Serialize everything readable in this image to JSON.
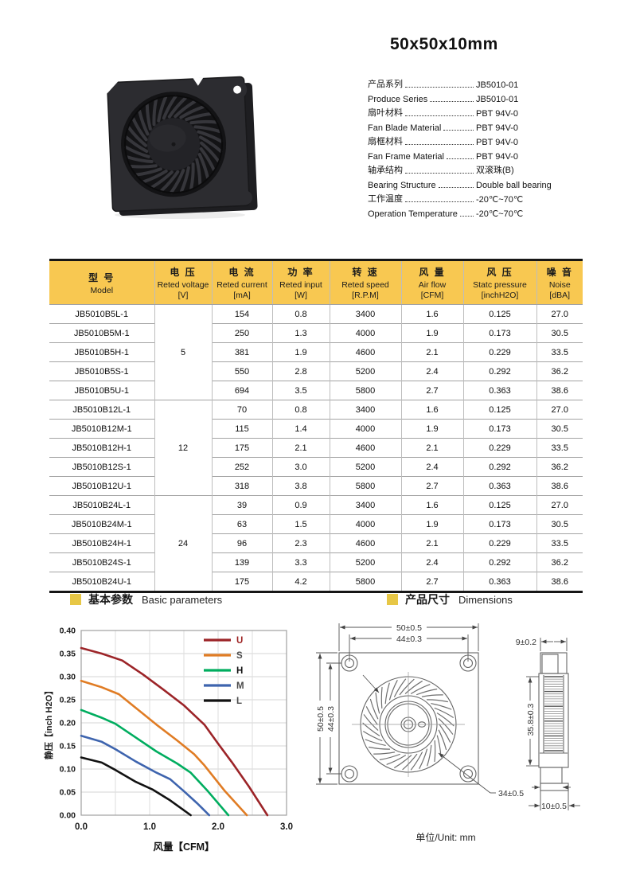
{
  "page": {
    "title": "50x50x10mm"
  },
  "specs": [
    {
      "label": "产品系列",
      "value": "JB5010-01"
    },
    {
      "label": "Produce Series",
      "value": "JB5010-01"
    },
    {
      "label": "扇叶材料",
      "value": "PBT  94V-0"
    },
    {
      "label": "Fan Blade Material",
      "value": "PBT  94V-0"
    },
    {
      "label": "扇框材料",
      "value": "PBT  94V-0"
    },
    {
      "label": "Fan Frame Material",
      "value": "PBT  94V-0"
    },
    {
      "label": "轴承结构",
      "value": "双滚珠(B)"
    },
    {
      "label": "Bearing Structure",
      "value": "Double ball bearing"
    },
    {
      "label": "工作温度",
      "value": "-20℃~70℃"
    },
    {
      "label": "Operation Temperature",
      "value": "-20℃~70℃"
    }
  ],
  "table": {
    "headers": [
      {
        "cn": "型 号",
        "en": "Model",
        "unit": ""
      },
      {
        "cn": "电 压",
        "en": "Reted voltage",
        "unit": "[V]"
      },
      {
        "cn": "电 流",
        "en": "Reted current",
        "unit": "[mA]"
      },
      {
        "cn": "功 率",
        "en": "Reted input",
        "unit": "[W]"
      },
      {
        "cn": "转 速",
        "en": "Reted speed",
        "unit": "[R.P.M]"
      },
      {
        "cn": "风 量",
        "en": "Air flow",
        "unit": "[CFM]"
      },
      {
        "cn": "风 压",
        "en": "Statc pressure",
        "unit": "[inchH2O]"
      },
      {
        "cn": "噪 音",
        "en": "Noise",
        "unit": "[dBA]"
      }
    ],
    "groups": [
      {
        "voltage": "5",
        "rows": [
          [
            "JB5010B5L-1",
            "154",
            "0.8",
            "3400",
            "1.6",
            "0.125",
            "27.0"
          ],
          [
            "JB5010B5M-1",
            "250",
            "1.3",
            "4000",
            "1.9",
            "0.173",
            "30.5"
          ],
          [
            "JB5010B5H-1",
            "381",
            "1.9",
            "4600",
            "2.1",
            "0.229",
            "33.5"
          ],
          [
            "JB5010B5S-1",
            "550",
            "2.8",
            "5200",
            "2.4",
            "0.292",
            "36.2"
          ],
          [
            "JB5010B5U-1",
            "694",
            "3.5",
            "5800",
            "2.7",
            "0.363",
            "38.6"
          ]
        ]
      },
      {
        "voltage": "12",
        "rows": [
          [
            "JB5010B12L-1",
            "70",
            "0.8",
            "3400",
            "1.6",
            "0.125",
            "27.0"
          ],
          [
            "JB5010B12M-1",
            "115",
            "1.4",
            "4000",
            "1.9",
            "0.173",
            "30.5"
          ],
          [
            "JB5010B12H-1",
            "175",
            "2.1",
            "4600",
            "2.1",
            "0.229",
            "33.5"
          ],
          [
            "JB5010B12S-1",
            "252",
            "3.0",
            "5200",
            "2.4",
            "0.292",
            "36.2"
          ],
          [
            "JB5010B12U-1",
            "318",
            "3.8",
            "5800",
            "2.7",
            "0.363",
            "38.6"
          ]
        ]
      },
      {
        "voltage": "24",
        "rows": [
          [
            "JB5010B24L-1",
            "39",
            "0.9",
            "3400",
            "1.6",
            "0.125",
            "27.0"
          ],
          [
            "JB5010B24M-1",
            "63",
            "1.5",
            "4000",
            "1.9",
            "0.173",
            "30.5"
          ],
          [
            "JB5010B24H-1",
            "96",
            "2.3",
            "4600",
            "2.1",
            "0.229",
            "33.5"
          ],
          [
            "JB5010B24S-1",
            "139",
            "3.3",
            "5200",
            "2.4",
            "0.292",
            "36.2"
          ],
          [
            "JB5010B24U-1",
            "175",
            "4.2",
            "5800",
            "2.7",
            "0.363",
            "38.6"
          ]
        ]
      }
    ]
  },
  "sections": {
    "left_cn": "基本参数",
    "left_en": "Basic parameters",
    "right_cn": "产品尺寸",
    "right_en": "Dimensions"
  },
  "chart_data": {
    "type": "line",
    "title": "",
    "xlabel": "风量【CFM】",
    "ylabel": "静压【inch H2O】",
    "xlim": [
      0,
      3.0
    ],
    "ylim": [
      0,
      0.4
    ],
    "x_ticks": [
      0.0,
      1.0,
      2.0,
      3.0
    ],
    "x_grid_step": 0.5,
    "y_tick_step": 0.05,
    "grid": true,
    "legend_position": "top-right",
    "series": [
      {
        "name": "U",
        "color": "#9C2428",
        "label_color": "#9C1F1F",
        "points": [
          [
            0,
            0.362
          ],
          [
            0.3,
            0.35
          ],
          [
            0.6,
            0.335
          ],
          [
            0.9,
            0.305
          ],
          [
            1.2,
            0.272
          ],
          [
            1.5,
            0.238
          ],
          [
            1.8,
            0.196
          ],
          [
            2.0,
            0.155
          ],
          [
            2.2,
            0.115
          ],
          [
            2.45,
            0.062
          ],
          [
            2.72,
            0
          ]
        ]
      },
      {
        "name": "S",
        "color": "#E07C24",
        "label_color": "#4a4a4a",
        "points": [
          [
            0,
            0.291
          ],
          [
            0.3,
            0.277
          ],
          [
            0.55,
            0.262
          ],
          [
            0.8,
            0.232
          ],
          [
            1.1,
            0.196
          ],
          [
            1.4,
            0.162
          ],
          [
            1.65,
            0.132
          ],
          [
            1.8,
            0.108
          ],
          [
            2.1,
            0.052
          ],
          [
            2.42,
            0
          ]
        ]
      },
      {
        "name": "H",
        "color": "#00AD5F",
        "label_color": "#111111",
        "points": [
          [
            0,
            0.228
          ],
          [
            0.3,
            0.211
          ],
          [
            0.5,
            0.198
          ],
          [
            0.8,
            0.168
          ],
          [
            1.1,
            0.138
          ],
          [
            1.4,
            0.112
          ],
          [
            1.6,
            0.092
          ],
          [
            1.85,
            0.052
          ],
          [
            2.15,
            0
          ]
        ]
      },
      {
        "name": "M",
        "color": "#3E64AE",
        "label_color": "#4a4a4a",
        "points": [
          [
            0,
            0.172
          ],
          [
            0.3,
            0.159
          ],
          [
            0.5,
            0.143
          ],
          [
            0.8,
            0.116
          ],
          [
            1.1,
            0.092
          ],
          [
            1.3,
            0.078
          ],
          [
            1.5,
            0.052
          ],
          [
            1.7,
            0.025
          ],
          [
            1.87,
            0
          ]
        ]
      },
      {
        "name": "L",
        "color": "#111111",
        "label_color": "#4a4a4a",
        "points": [
          [
            0,
            0.125
          ],
          [
            0.3,
            0.114
          ],
          [
            0.5,
            0.098
          ],
          [
            0.8,
            0.072
          ],
          [
            1.05,
            0.055
          ],
          [
            1.3,
            0.032
          ],
          [
            1.6,
            0
          ]
        ]
      }
    ]
  },
  "dimensions": {
    "front": {
      "outer_w": "50±0.5",
      "inner_w": "44±0.3",
      "outer_h": "50±0.5",
      "inner_h": "44±0.3",
      "impeller": "34±0.5"
    },
    "side": {
      "top": "9±0.2",
      "height": "35.8±0.3",
      "bottom": "10±0.5"
    },
    "unit": "单位/Unit:  mm"
  },
  "colors": {
    "accent_yellow": "#F8C851",
    "bullet_yellow": "#E7C746",
    "table_border": "#161616"
  }
}
